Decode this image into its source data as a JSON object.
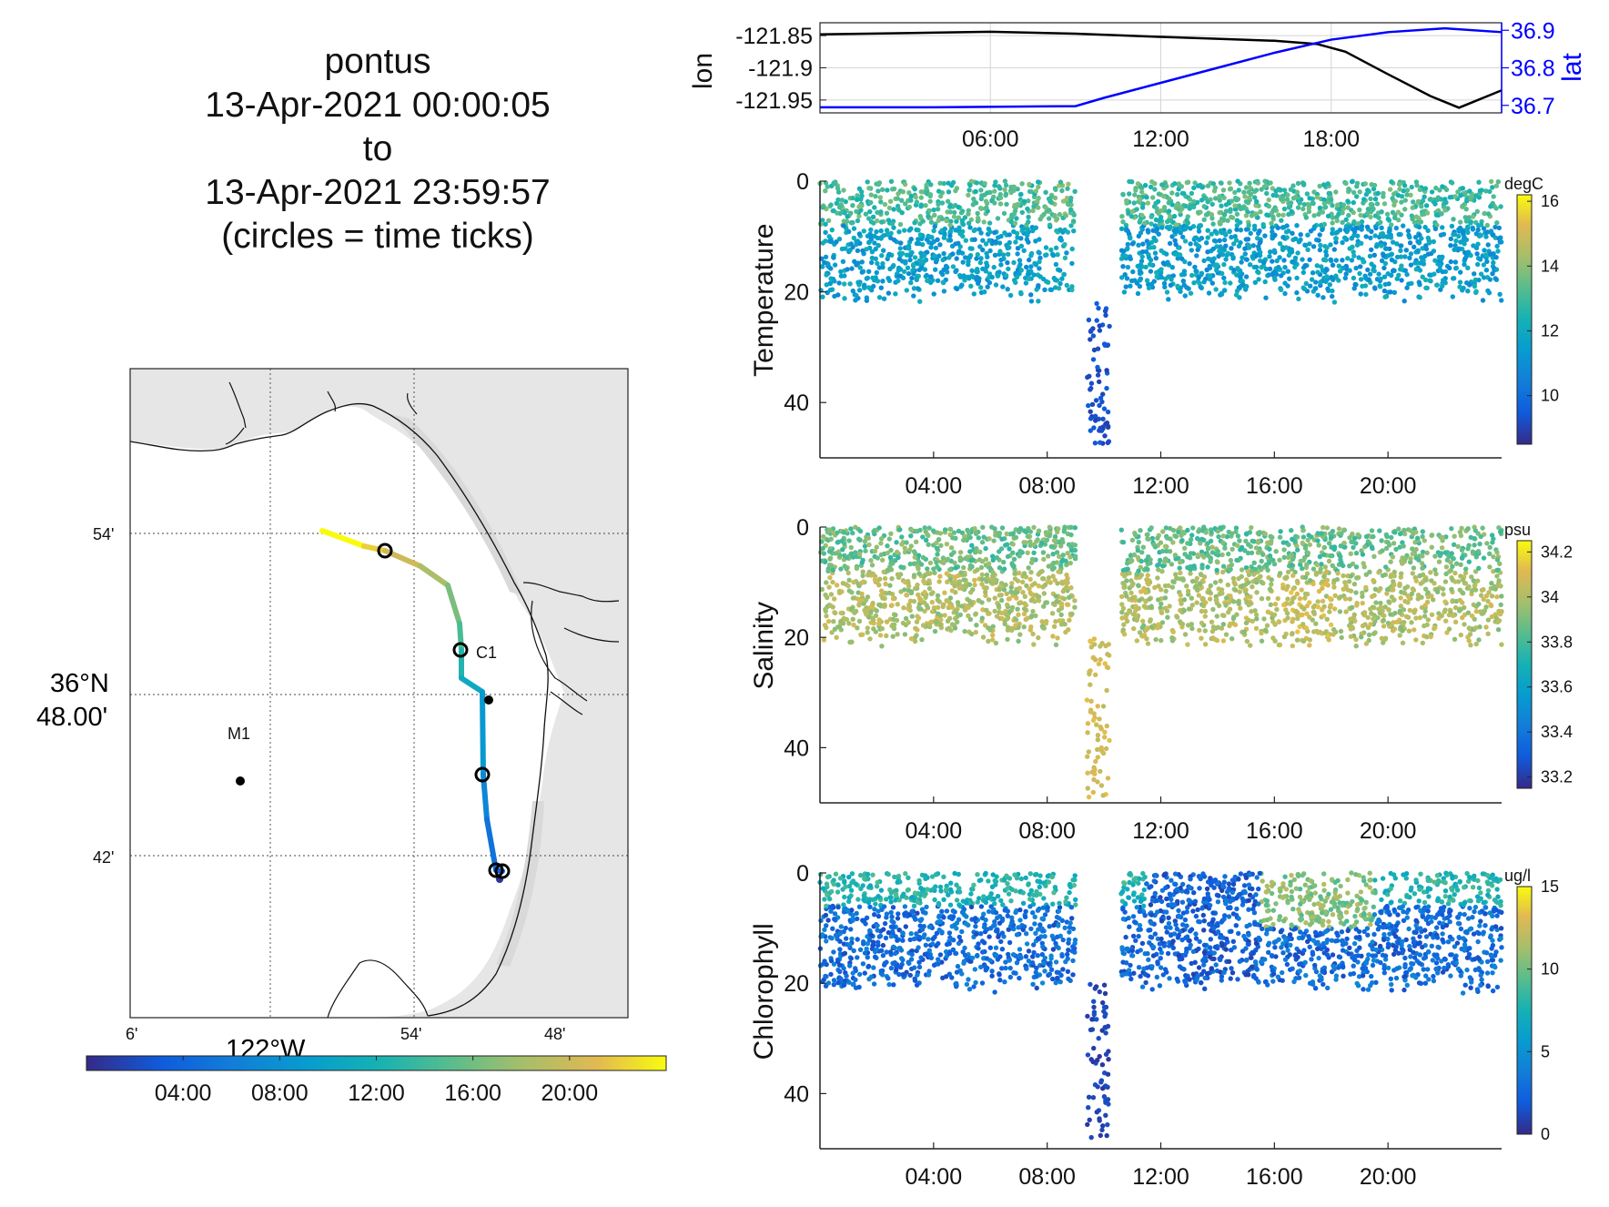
{
  "title": {
    "line1": "pontus",
    "line2": "13-Apr-2021 00:00:05",
    "line3": "to",
    "line4": "13-Apr-2021 23:59:57",
    "line5": "(circles = time ticks)"
  },
  "map": {
    "lat_ticks": [
      "54'",
      "36°N",
      "48.00'",
      "42'"
    ],
    "lon_ticks": [
      "6'",
      "54'",
      "48'"
    ],
    "lon_label": "122°W",
    "stations": [
      {
        "name": "M1"
      },
      {
        "name": "C1"
      }
    ],
    "colorbar_ticks": [
      "04:00",
      "08:00",
      "12:00",
      "16:00",
      "20:00"
    ]
  },
  "chart_data": [
    {
      "type": "line",
      "x_ticks": [
        "06:00",
        "12:00",
        "18:00"
      ],
      "ylabel": "lon",
      "ylabel_right": "lat",
      "y_ticks": [
        "-121.85",
        "-121.9",
        "-121.95"
      ],
      "y2_ticks": [
        "36.9",
        "36.8",
        "36.7"
      ],
      "ylim": [
        -121.97,
        -121.83
      ],
      "y2lim": [
        36.68,
        36.92
      ],
      "xlim_hours": [
        0,
        24
      ],
      "series": [
        {
          "name": "lon",
          "color": "#000000",
          "x_hours": [
            0,
            3,
            6,
            9,
            12,
            14,
            16,
            17.5,
            18.5,
            20,
            21.5,
            22.5,
            24
          ],
          "values": [
            -121.848,
            -121.846,
            -121.844,
            -121.847,
            -121.852,
            -121.855,
            -121.858,
            -121.863,
            -121.875,
            -121.91,
            -121.944,
            -121.962,
            -121.935
          ]
        },
        {
          "name": "lat",
          "color": "#0000ff",
          "x_hours": [
            0,
            4,
            9,
            10,
            12,
            14,
            16,
            18,
            20,
            22,
            24
          ],
          "values": [
            36.695,
            36.695,
            36.698,
            36.72,
            36.76,
            36.8,
            36.84,
            36.875,
            36.895,
            36.905,
            36.895
          ]
        }
      ]
    },
    {
      "type": "scatter",
      "ylabel": "Temperature",
      "colorbar_label": "degC",
      "colorbar_ticks": [
        "16",
        "14",
        "12",
        "10"
      ],
      "clim": [
        8.5,
        16.2
      ],
      "y_ticks": [
        "0",
        "20",
        "40"
      ],
      "ylim": [
        0,
        50
      ],
      "x_ticks": [
        "04:00",
        "08:00",
        "12:00",
        "16:00",
        "20:00"
      ],
      "xlim_hours": [
        0,
        24
      ],
      "dive": {
        "x_hours": [
          9.4,
          10.2
        ],
        "depth_max": 48
      }
    },
    {
      "type": "scatter",
      "ylabel": "Salinity",
      "colorbar_label": "psu",
      "colorbar_ticks": [
        "34.2",
        "34",
        "33.8",
        "33.6",
        "33.4",
        "33.2"
      ],
      "clim": [
        33.15,
        34.25
      ],
      "y_ticks": [
        "0",
        "20",
        "40"
      ],
      "ylim": [
        0,
        50
      ],
      "x_ticks": [
        "04:00",
        "08:00",
        "12:00",
        "16:00",
        "20:00"
      ],
      "xlim_hours": [
        0,
        24
      ],
      "dive": {
        "x_hours": [
          9.4,
          10.2
        ],
        "depth_max": 49
      }
    },
    {
      "type": "scatter",
      "ylabel": "Chlorophyll",
      "colorbar_label": "ug/l",
      "colorbar_ticks": [
        "15",
        "10",
        "5",
        "0"
      ],
      "clim": [
        0,
        15
      ],
      "y_ticks": [
        "0",
        "20",
        "40"
      ],
      "ylim": [
        0,
        50
      ],
      "x_ticks": [
        "04:00",
        "08:00",
        "12:00",
        "16:00",
        "20:00"
      ],
      "xlim_hours": [
        0,
        24
      ],
      "dive": {
        "x_hours": [
          9.4,
          10.2
        ],
        "depth_max": 48
      }
    }
  ]
}
